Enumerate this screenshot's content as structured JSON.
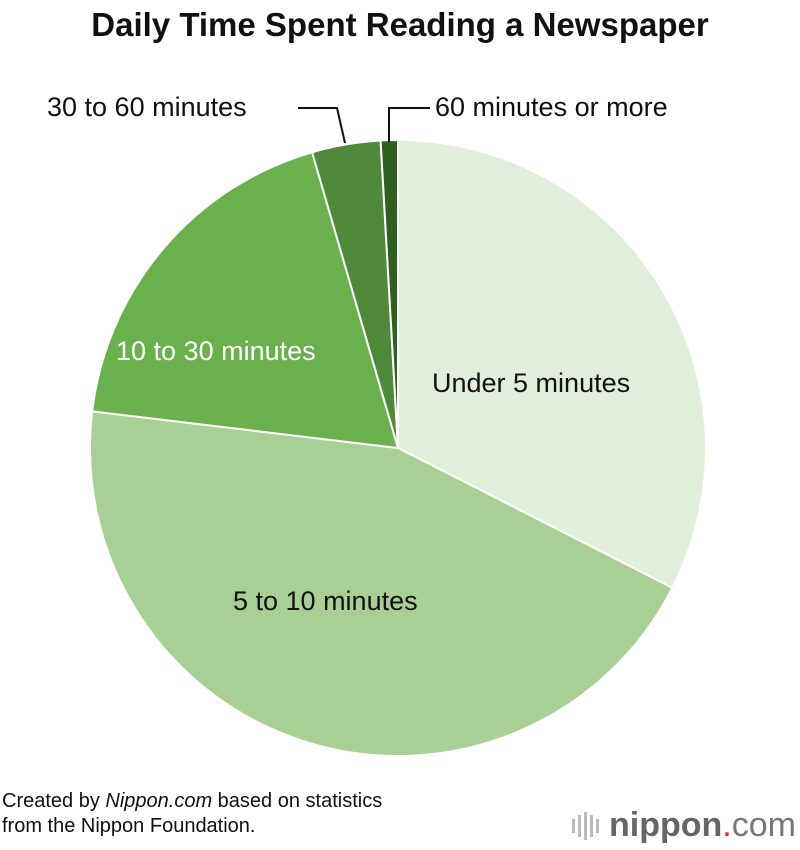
{
  "chart_data": {
    "type": "pie",
    "title": "Daily Time Spent Reading a Newspaper",
    "start": "top",
    "direction": "clockwise",
    "slices": [
      {
        "label": "Under 5 minutes",
        "value": 32.5,
        "color": "#e1eed9"
      },
      {
        "label": "5 to 10 minutes",
        "value": 44.4,
        "color": "#a8d095"
      },
      {
        "label": "10 to 30 minutes",
        "value": 18.6,
        "color": "#6ab04c"
      },
      {
        "label": "30 to 60 minutes",
        "value": 3.6,
        "color": "#4e8a3a"
      },
      {
        "label": "60 minutes or more",
        "value": 0.9,
        "color": "#2f6020"
      }
    ]
  },
  "footnote": {
    "prefix": "Created by ",
    "source": "Nippon.com",
    "suffix": " based on statistics",
    "line2": "from the Nippon Foundation."
  },
  "logo": {
    "name": "nippon",
    "dot": ".",
    "tld": "com"
  }
}
